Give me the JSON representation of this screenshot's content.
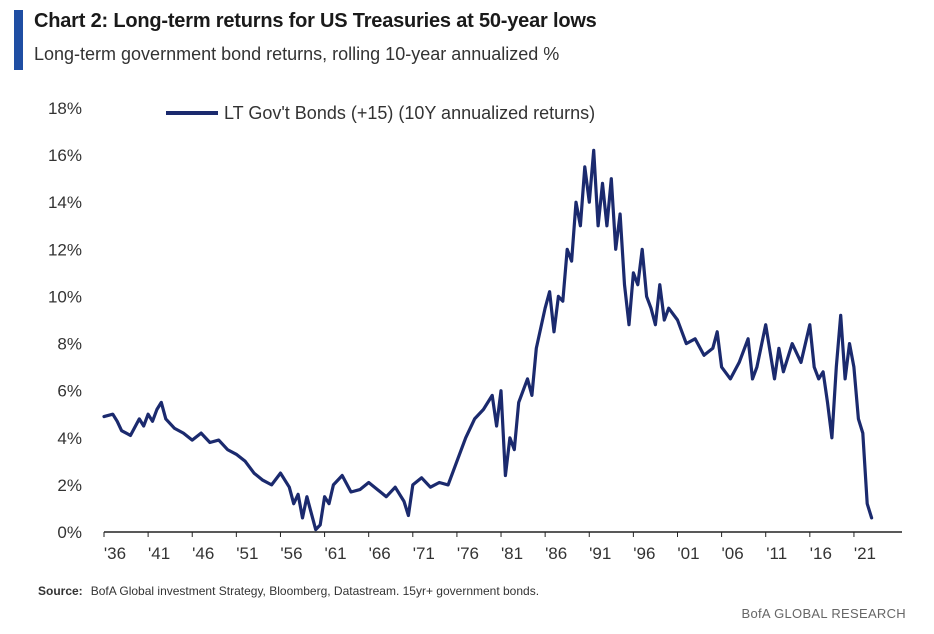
{
  "header": {
    "title": "Chart 2: Long-term returns for US Treasuries at 50-year lows",
    "subtitle": "Long-term government bond returns, rolling 10-year annualized %"
  },
  "footer": {
    "source_label": "Source:",
    "source_text": "BofA Global investment Strategy, Bloomberg, Datastream. 15yr+ government bonds.",
    "brand": "BofA GLOBAL RESEARCH"
  },
  "colors": {
    "accent": "#1f4ea3",
    "series": "#1b2a6e",
    "axis": "#222222"
  },
  "chart_data": {
    "type": "line",
    "title": "Chart 2: Long-term returns for US Treasuries at 50-year lows",
    "subtitle": "Long-term government bond returns, rolling 10-year annualized %",
    "xlim": [
      1936,
      2023.5
    ],
    "ylim": [
      0,
      18
    ],
    "x_tick_values": [
      1936,
      1941,
      1946,
      1951,
      1956,
      1961,
      1966,
      1971,
      1976,
      1981,
      1986,
      1991,
      1996,
      2001,
      2006,
      2011,
      2016,
      2021
    ],
    "x_tick_labels": [
      "'36",
      "'41",
      "'46",
      "'51",
      "'56",
      "'61",
      "'66",
      "'71",
      "'76",
      "'81",
      "'86",
      "'91",
      "'96",
      "'01",
      "'06",
      "'11",
      "'16",
      "'21"
    ],
    "y_tick_values": [
      0,
      2,
      4,
      6,
      8,
      10,
      12,
      14,
      16,
      18
    ],
    "y_tick_labels": [
      "0%",
      "2%",
      "4%",
      "6%",
      "8%",
      "10%",
      "12%",
      "14%",
      "16%",
      "18%"
    ],
    "grid": false,
    "legend_position": "top-left",
    "series": [
      {
        "name": "LT Gov't Bonds (+15) (10Y annualized returns)",
        "x": [
          1936.0,
          1937.0,
          1937.5,
          1938.0,
          1939.0,
          1940.0,
          1940.5,
          1941.0,
          1941.5,
          1942.0,
          1942.5,
          1943.0,
          1944.0,
          1945.0,
          1946.0,
          1947.0,
          1948.0,
          1949.0,
          1950.0,
          1951.0,
          1952.0,
          1953.0,
          1954.0,
          1955.0,
          1956.0,
          1957.0,
          1957.5,
          1958.0,
          1958.5,
          1959.0,
          1959.5,
          1960.0,
          1960.5,
          1961.0,
          1961.5,
          1962.0,
          1963.0,
          1964.0,
          1965.0,
          1966.0,
          1967.0,
          1968.0,
          1969.0,
          1970.0,
          1970.5,
          1971.0,
          1972.0,
          1973.0,
          1974.0,
          1975.0,
          1976.0,
          1977.0,
          1978.0,
          1979.0,
          1980.0,
          1980.5,
          1981.0,
          1981.5,
          1982.0,
          1982.5,
          1983.0,
          1984.0,
          1984.5,
          1985.0,
          1986.0,
          1986.5,
          1987.0,
          1987.5,
          1988.0,
          1988.5,
          1989.0,
          1989.5,
          1990.0,
          1990.5,
          1991.0,
          1991.5,
          1992.0,
          1992.5,
          1993.0,
          1993.5,
          1994.0,
          1994.5,
          1995.0,
          1995.5,
          1996.0,
          1996.5,
          1997.0,
          1997.5,
          1998.0,
          1998.5,
          1999.0,
          1999.5,
          2000.0,
          2001.0,
          2002.0,
          2003.0,
          2004.0,
          2005.0,
          2005.5,
          2006.0,
          2007.0,
          2008.0,
          2009.0,
          2009.5,
          2010.0,
          2011.0,
          2012.0,
          2012.5,
          2013.0,
          2014.0,
          2015.0,
          2016.0,
          2016.5,
          2017.0,
          2017.5,
          2018.0,
          2018.5,
          2019.0,
          2019.5,
          2020.0,
          2020.5,
          2021.0,
          2021.5,
          2022.0,
          2022.5,
          2023.0
        ],
        "values": [
          4.9,
          5.0,
          4.7,
          4.3,
          4.1,
          4.8,
          4.5,
          5.0,
          4.7,
          5.2,
          5.5,
          4.8,
          4.4,
          4.2,
          3.9,
          4.2,
          3.8,
          3.9,
          3.5,
          3.3,
          3.0,
          2.5,
          2.2,
          2.0,
          2.5,
          1.9,
          1.2,
          1.6,
          0.6,
          1.5,
          0.8,
          0.1,
          0.3,
          1.5,
          1.2,
          2.0,
          2.4,
          1.7,
          1.8,
          2.1,
          1.8,
          1.5,
          1.9,
          1.3,
          0.7,
          2.0,
          2.3,
          1.9,
          2.1,
          2.0,
          3.0,
          4.0,
          4.8,
          5.2,
          5.8,
          4.5,
          6.0,
          2.4,
          4.0,
          3.5,
          5.5,
          6.5,
          5.8,
          7.8,
          9.5,
          10.2,
          8.5,
          10.0,
          9.8,
          12.0,
          11.5,
          14.0,
          13.0,
          15.5,
          14.0,
          16.2,
          13.0,
          14.8,
          13.0,
          15.0,
          12.0,
          13.5,
          10.5,
          8.8,
          11.0,
          10.5,
          12.0,
          10.0,
          9.5,
          8.8,
          10.5,
          9.0,
          9.5,
          9.0,
          8.0,
          8.2,
          7.5,
          7.8,
          8.5,
          7.0,
          6.5,
          7.2,
          8.2,
          6.5,
          7.0,
          8.8,
          6.5,
          7.8,
          6.8,
          8.0,
          7.2,
          8.8,
          7.0,
          6.5,
          6.8,
          5.5,
          4.0,
          7.0,
          9.2,
          6.5,
          8.0,
          7.0,
          4.8,
          4.2,
          1.2,
          0.6
        ]
      }
    ]
  }
}
